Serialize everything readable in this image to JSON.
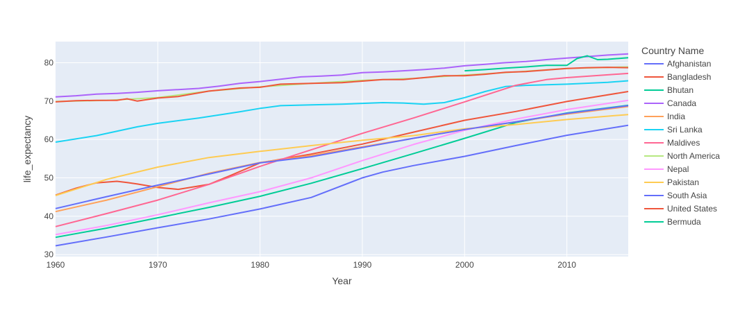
{
  "chart_data": {
    "type": "line",
    "xlabel": "Year",
    "ylabel": "life_expectancy",
    "xlim": [
      1960,
      2016
    ],
    "ylim": [
      29.5,
      85.5
    ],
    "x_ticks": [
      1960,
      1970,
      1980,
      1990,
      2000,
      2010
    ],
    "y_ticks": [
      30,
      40,
      50,
      60,
      70,
      80
    ],
    "grid": true,
    "legend_position": "right",
    "legend_title": "Country Name",
    "series": [
      {
        "name": "Afghanistan",
        "color": "#636efa",
        "x": [
          1960,
          1965,
          1970,
          1975,
          1980,
          1985,
          1990,
          1992,
          1995,
          2000,
          2005,
          2010,
          2016
        ],
        "y": [
          32.3,
          34.6,
          37.0,
          39.3,
          41.9,
          44.9,
          50.0,
          51.5,
          53.2,
          55.6,
          58.4,
          61.1,
          63.7
        ]
      },
      {
        "name": "Bangladesh",
        "color": "#ef553b",
        "x": [
          1960,
          1962,
          1964,
          1966,
          1967,
          1968,
          1970,
          1972,
          1975,
          1977,
          1980,
          1985,
          1990,
          1995,
          2000,
          2005,
          2010,
          2016
        ],
        "y": [
          45.5,
          47.3,
          48.7,
          49.1,
          48.8,
          48.4,
          47.5,
          47.0,
          48.3,
          50.5,
          53.9,
          56.2,
          58.8,
          61.9,
          65.0,
          67.3,
          69.9,
          72.5
        ]
      },
      {
        "name": "Bhutan",
        "color": "#00cc96",
        "x": [
          1960,
          1965,
          1970,
          1975,
          1980,
          1985,
          1990,
          1995,
          2000,
          2005,
          2010,
          2016
        ],
        "y": [
          34.5,
          36.9,
          39.6,
          42.3,
          45.2,
          48.6,
          52.4,
          56.3,
          60.3,
          64.4,
          66.9,
          68.9
        ]
      },
      {
        "name": "Canada",
        "color": "#ab63fa",
        "x": [
          1960,
          1962,
          1964,
          1966,
          1968,
          1970,
          1972,
          1974,
          1976,
          1978,
          1980,
          1982,
          1984,
          1986,
          1988,
          1990,
          1992,
          1994,
          1996,
          1998,
          2000,
          2002,
          2004,
          2006,
          2008,
          2010,
          2012,
          2014,
          2016
        ],
        "y": [
          71.1,
          71.4,
          71.8,
          72.0,
          72.3,
          72.7,
          73.0,
          73.3,
          73.9,
          74.6,
          75.1,
          75.7,
          76.3,
          76.5,
          76.8,
          77.4,
          77.6,
          77.9,
          78.2,
          78.6,
          79.2,
          79.6,
          80.0,
          80.3,
          80.8,
          81.2,
          81.6,
          82.0,
          82.3
        ]
      },
      {
        "name": "India",
        "color": "#ffa15a",
        "x": [
          1960,
          1965,
          1970,
          1975,
          1980,
          1985,
          1990,
          1995,
          2000,
          2005,
          2010,
          2016
        ],
        "y": [
          41.2,
          44.2,
          47.7,
          51.2,
          54.0,
          55.8,
          58.1,
          60.3,
          62.6,
          64.6,
          66.6,
          68.6
        ]
      },
      {
        "name": "Sri Lanka",
        "color": "#19d3f3",
        "x": [
          1960,
          1964,
          1968,
          1970,
          1974,
          1978,
          1980,
          1982,
          1985,
          1988,
          1990,
          1992,
          1994,
          1996,
          1998,
          2000,
          2002,
          2004,
          2006,
          2010,
          2014,
          2016
        ],
        "y": [
          59.3,
          61.0,
          63.3,
          64.2,
          65.6,
          67.2,
          68.1,
          68.8,
          69.0,
          69.2,
          69.4,
          69.6,
          69.5,
          69.2,
          69.6,
          70.9,
          72.5,
          73.8,
          74.1,
          74.4,
          74.9,
          75.3
        ]
      },
      {
        "name": "Maldives",
        "color": "#ff6692",
        "x": [
          1960,
          1965,
          1970,
          1975,
          1980,
          1985,
          1990,
          1995,
          2000,
          2005,
          2008,
          2010,
          2016
        ],
        "y": [
          37.3,
          40.7,
          44.2,
          48.3,
          53.0,
          57.3,
          61.6,
          65.6,
          69.8,
          74.1,
          75.6,
          76.1,
          77.2
        ]
      },
      {
        "name": "North America",
        "color": "#b6e880",
        "x": [
          1960,
          1965,
          1970,
          1975,
          1980,
          1985,
          1990,
          1995,
          2000,
          2005,
          2010,
          2016
        ],
        "y": [
          69.9,
          70.2,
          70.9,
          72.6,
          73.7,
          74.6,
          75.4,
          75.9,
          76.8,
          77.6,
          78.5,
          78.9
        ]
      },
      {
        "name": "Nepal",
        "color": "#ff97ff",
        "x": [
          1960,
          1965,
          1970,
          1975,
          1980,
          1985,
          1990,
          1995,
          2000,
          2005,
          2010,
          2016
        ],
        "y": [
          35.2,
          37.6,
          40.4,
          43.5,
          46.4,
          50.0,
          54.5,
          58.7,
          62.4,
          65.3,
          67.8,
          70.2
        ]
      },
      {
        "name": "Pakistan",
        "color": "#fecb52",
        "x": [
          1960,
          1965,
          1970,
          1975,
          1980,
          1985,
          1990,
          1995,
          2000,
          2005,
          2010,
          2016
        ],
        "y": [
          45.4,
          49.6,
          52.8,
          55.3,
          56.9,
          58.4,
          59.8,
          61.0,
          62.8,
          63.9,
          65.2,
          66.5
        ]
      },
      {
        "name": "South Asia",
        "color": "#636efa",
        "x": [
          1960,
          1965,
          1970,
          1975,
          1980,
          1985,
          1990,
          1995,
          2000,
          2005,
          2010,
          2016
        ],
        "y": [
          42.0,
          45.1,
          48.1,
          51.0,
          53.9,
          55.5,
          57.9,
          60.3,
          62.6,
          64.6,
          66.8,
          68.8
        ]
      },
      {
        "name": "United States",
        "color": "#ef553b",
        "x": [
          1960,
          1962,
          1964,
          1966,
          1967,
          1968,
          1970,
          1972,
          1975,
          1978,
          1980,
          1982,
          1985,
          1988,
          1990,
          1992,
          1994,
          1996,
          1998,
          2000,
          2002,
          2004,
          2006,
          2008,
          2010,
          2012,
          2014,
          2016
        ],
        "y": [
          69.8,
          70.1,
          70.2,
          70.2,
          70.6,
          70.0,
          70.8,
          71.2,
          72.6,
          73.4,
          73.6,
          74.4,
          74.6,
          74.8,
          75.2,
          75.6,
          75.6,
          76.1,
          76.6,
          76.6,
          77.0,
          77.5,
          77.7,
          78.1,
          78.5,
          78.7,
          78.8,
          78.7
        ]
      },
      {
        "name": "Bermuda",
        "color": "#00cc96",
        "x": [
          2000,
          2002,
          2004,
          2006,
          2008,
          2010,
          2011,
          2012,
          2013,
          2014,
          2016
        ],
        "y": [
          77.9,
          78.2,
          78.6,
          78.9,
          79.3,
          79.3,
          81.1,
          81.8,
          80.8,
          80.9,
          81.3
        ]
      }
    ]
  }
}
